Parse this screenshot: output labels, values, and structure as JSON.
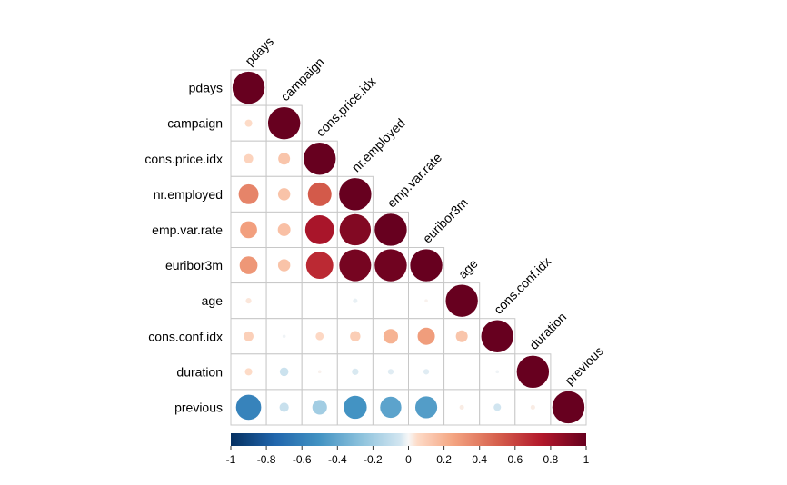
{
  "chart_data": {
    "type": "heatmap",
    "subtype": "correlation-circles-lower-triangle",
    "variables": [
      "pdays",
      "campaign",
      "cons.price.idx",
      "nr.employed",
      "emp.var.rate",
      "euribor3m",
      "age",
      "cons.conf.idx",
      "duration",
      "previous"
    ],
    "matrix": [
      [
        1.0,
        0.05,
        0.08,
        0.37,
        0.27,
        0.3,
        0.03,
        0.09,
        0.05,
        -0.59
      ],
      [
        0.05,
        1.0,
        0.13,
        0.14,
        0.15,
        0.14,
        0.0,
        -0.01,
        -0.07,
        -0.08
      ],
      [
        0.08,
        0.13,
        1.0,
        0.52,
        0.78,
        0.69,
        0.0,
        0.06,
        0.01,
        -0.2
      ],
      [
        0.37,
        0.14,
        0.52,
        1.0,
        0.91,
        0.95,
        -0.02,
        0.1,
        -0.04,
        -0.5
      ],
      [
        0.27,
        0.15,
        0.78,
        0.91,
        1.0,
        0.97,
        0.0,
        0.2,
        -0.03,
        -0.42
      ],
      [
        0.3,
        0.14,
        0.69,
        0.95,
        0.97,
        1.0,
        0.01,
        0.28,
        -0.03,
        -0.45
      ],
      [
        0.03,
        0.0,
        0.0,
        -0.02,
        0.0,
        0.01,
        1.0,
        0.13,
        0.0,
        0.02
      ],
      [
        0.09,
        -0.01,
        0.06,
        0.1,
        0.2,
        0.28,
        0.13,
        1.0,
        -0.01,
        -0.05
      ],
      [
        0.05,
        -0.07,
        0.01,
        -0.04,
        -0.03,
        -0.03,
        0.0,
        -0.01,
        1.0,
        0.02
      ],
      [
        -0.59,
        -0.08,
        -0.2,
        -0.5,
        -0.42,
        -0.45,
        0.02,
        -0.05,
        0.02,
        1.0
      ]
    ],
    "colorbar": {
      "range": [
        -1,
        1
      ],
      "ticks": [
        "-1",
        "-0.8",
        "-0.6",
        "-0.4",
        "-0.2",
        "0",
        "0.2",
        "0.4",
        "0.6",
        "0.8",
        "1"
      ],
      "placement": "bottom"
    },
    "colors": {
      "negative_strong": "#053061",
      "neutral": "#f7f7f7",
      "positive_strong": "#67001f",
      "grid": "#c8c8c8"
    }
  }
}
